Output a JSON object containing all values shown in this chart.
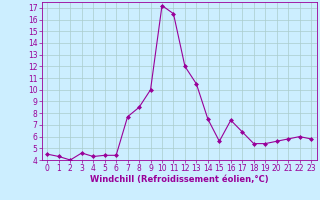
{
  "x": [
    0,
    1,
    2,
    3,
    4,
    5,
    6,
    7,
    8,
    9,
    10,
    11,
    12,
    13,
    14,
    15,
    16,
    17,
    18,
    19,
    20,
    21,
    22,
    23
  ],
  "y": [
    4.5,
    4.3,
    4.0,
    4.6,
    4.3,
    4.4,
    4.4,
    7.7,
    8.5,
    10.0,
    17.2,
    16.5,
    12.0,
    10.5,
    7.5,
    5.6,
    7.4,
    6.4,
    5.4,
    5.4,
    5.6,
    5.8,
    6.0,
    5.8
  ],
  "line_color": "#990099",
  "marker": "D",
  "marker_size": 2.0,
  "bg_color": "#cceeff",
  "grid_color": "#aacccc",
  "xlabel": "Windchill (Refroidissement éolien,°C)",
  "ylim": [
    4,
    17.5
  ],
  "yticks": [
    4,
    5,
    6,
    7,
    8,
    9,
    10,
    11,
    12,
    13,
    14,
    15,
    16,
    17
  ],
  "xticks": [
    0,
    1,
    2,
    3,
    4,
    5,
    6,
    7,
    8,
    9,
    10,
    11,
    12,
    13,
    14,
    15,
    16,
    17,
    18,
    19,
    20,
    21,
    22,
    23
  ],
  "tick_color": "#990099",
  "label_color": "#990099",
  "spine_color": "#990099",
  "tick_fontsize": 5.5,
  "xlabel_fontsize": 6.0,
  "linewidth": 0.8
}
